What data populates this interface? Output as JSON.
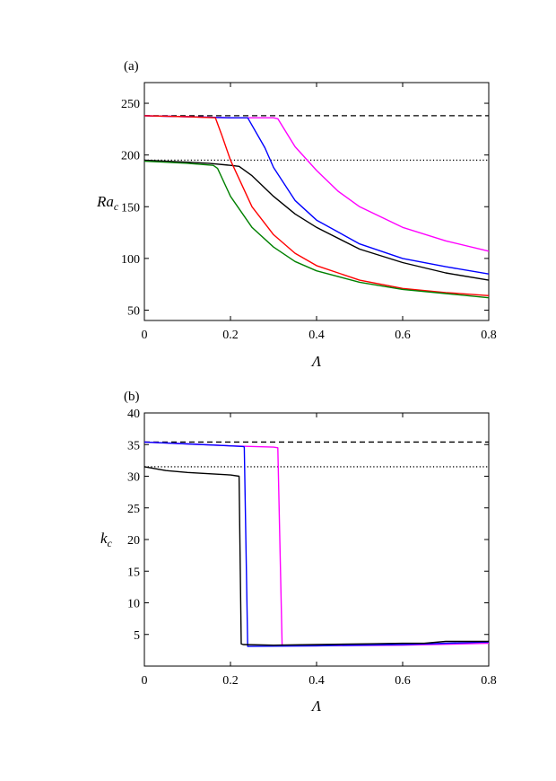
{
  "chart_data": [
    {
      "type": "line",
      "panel_label": "(a)",
      "xlabel": "Λ",
      "ylabel_main": "Ra",
      "ylabel_sub": "c",
      "xlim": [
        0,
        0.8
      ],
      "ylim": [
        40,
        270
      ],
      "xticks": [
        0,
        0.2,
        0.4,
        0.6,
        0.8
      ],
      "xtick_labels": [
        "0",
        "0.2",
        "0.4",
        "0.6",
        "0.8"
      ],
      "yticks": [
        50,
        100,
        150,
        200,
        250
      ],
      "ytick_labels": [
        "50",
        "100",
        "150",
        "200",
        "250"
      ],
      "reference_lines": [
        {
          "name": "dashed",
          "y": 238,
          "style": "dashed",
          "color": "#000000"
        },
        {
          "name": "dotted",
          "y": 195,
          "style": "dotted",
          "color": "#000000"
        }
      ],
      "series": [
        {
          "name": "magenta",
          "color": "#ff00ff",
          "x": [
            0,
            0.1,
            0.2,
            0.3,
            0.31,
            0.35,
            0.4,
            0.45,
            0.5,
            0.6,
            0.7,
            0.8
          ],
          "y": [
            238,
            237,
            236,
            236,
            235,
            208,
            185,
            165,
            150,
            130,
            117,
            107
          ]
        },
        {
          "name": "blue",
          "color": "#0000ff",
          "x": [
            0,
            0.1,
            0.2,
            0.24,
            0.28,
            0.3,
            0.35,
            0.4,
            0.5,
            0.6,
            0.7,
            0.8
          ],
          "y": [
            238,
            237,
            236,
            236,
            207,
            188,
            156,
            137,
            114,
            100,
            92,
            85
          ]
        },
        {
          "name": "black",
          "color": "#000000",
          "x": [
            0,
            0.05,
            0.1,
            0.15,
            0.2,
            0.22,
            0.25,
            0.3,
            0.35,
            0.4,
            0.5,
            0.6,
            0.7,
            0.8
          ],
          "y": [
            195,
            194,
            193,
            192,
            190,
            189,
            180,
            160,
            143,
            130,
            109,
            96,
            86,
            79
          ]
        },
        {
          "name": "red",
          "color": "#ff0000",
          "x": [
            0,
            0.1,
            0.165,
            0.18,
            0.2,
            0.25,
            0.3,
            0.35,
            0.4,
            0.5,
            0.6,
            0.7,
            0.8
          ],
          "y": [
            238,
            237,
            236,
            219,
            195,
            150,
            123,
            105,
            93,
            79,
            71,
            67,
            64
          ]
        },
        {
          "name": "green",
          "color": "#008000",
          "x": [
            0,
            0.05,
            0.1,
            0.16,
            0.17,
            0.2,
            0.25,
            0.3,
            0.35,
            0.4,
            0.5,
            0.6,
            0.7,
            0.8
          ],
          "y": [
            194,
            193,
            192,
            190,
            187,
            160,
            130,
            111,
            97,
            88,
            77,
            70,
            66,
            62
          ]
        }
      ]
    },
    {
      "type": "line",
      "panel_label": "(b)",
      "xlabel": "Λ",
      "ylabel_main": "k",
      "ylabel_sub": "c",
      "xlim": [
        0,
        0.8
      ],
      "ylim": [
        0,
        40
      ],
      "xticks": [
        0,
        0.2,
        0.4,
        0.6,
        0.8
      ],
      "xtick_labels": [
        "0",
        "0.2",
        "0.4",
        "0.6",
        "0.8"
      ],
      "yticks": [
        5,
        10,
        15,
        20,
        25,
        30,
        35,
        40
      ],
      "ytick_labels": [
        "5",
        "10",
        "15",
        "20",
        "25",
        "30",
        "35",
        "40"
      ],
      "reference_lines": [
        {
          "name": "dashed",
          "y": 35.4,
          "style": "dashed",
          "color": "#000000"
        },
        {
          "name": "dotted",
          "y": 31.5,
          "style": "dotted",
          "color": "#000000"
        }
      ],
      "series": [
        {
          "name": "magenta",
          "color": "#ff00ff",
          "x": [
            0,
            0.1,
            0.2,
            0.3,
            0.31,
            0.32,
            0.4,
            0.6,
            0.8
          ],
          "y": [
            35.4,
            35.1,
            34.8,
            34.6,
            34.5,
            3.2,
            3.2,
            3.3,
            3.6
          ]
        },
        {
          "name": "blue",
          "color": "#0000ff",
          "x": [
            0,
            0.1,
            0.2,
            0.23,
            0.232,
            0.24,
            0.4,
            0.6,
            0.8
          ],
          "y": [
            35.4,
            35.1,
            34.8,
            34.7,
            34.6,
            3.1,
            3.2,
            3.4,
            3.8
          ]
        },
        {
          "name": "black",
          "color": "#000000",
          "x": [
            0,
            0.05,
            0.1,
            0.15,
            0.2,
            0.22,
            0.225,
            0.23,
            0.3,
            0.4,
            0.5,
            0.6,
            0.65,
            0.7,
            0.8
          ],
          "y": [
            31.5,
            30.9,
            30.6,
            30.4,
            30.2,
            30.0,
            3.5,
            3.4,
            3.3,
            3.4,
            3.5,
            3.6,
            3.6,
            3.9,
            3.9
          ]
        }
      ]
    }
  ]
}
